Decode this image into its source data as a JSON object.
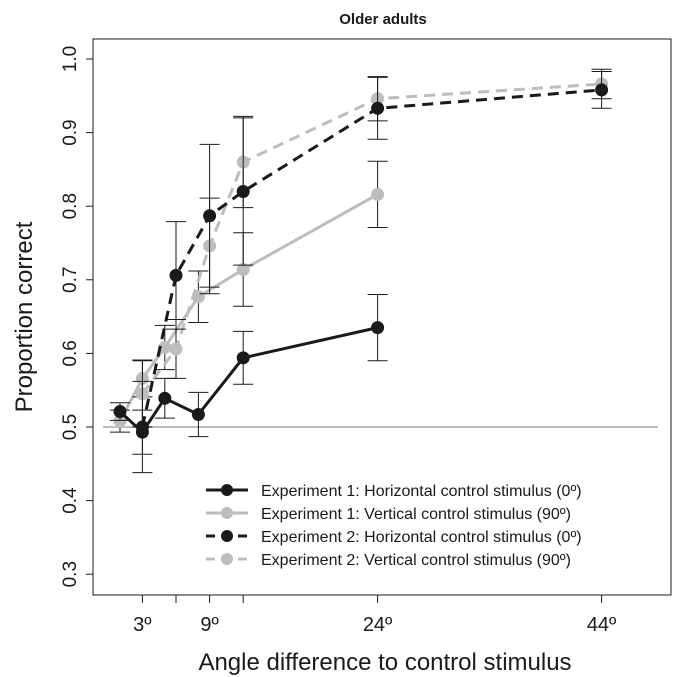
{
  "chart_data": {
    "type": "line",
    "title": "Older adults",
    "xlabel": "Angle difference to control stimulus",
    "ylabel": "Proportion correct",
    "xlim": [
      -2,
      50
    ],
    "ylim": [
      0.28,
      1.03
    ],
    "y_ticks": [
      0.3,
      0.4,
      0.5,
      0.6,
      0.7,
      0.8,
      0.9,
      1.0
    ],
    "y_tick_labels": [
      "0.3",
      "0.4",
      "0.5",
      "0.6",
      "0.7",
      "0.8",
      "0.9",
      "1.0"
    ],
    "x_ticks": [
      3,
      6,
      9,
      12,
      24,
      44
    ],
    "x_tick_labels": [
      "3º",
      "",
      "9º",
      "",
      "24º",
      "44º"
    ],
    "reference_line": 0.5,
    "grid": false,
    "legend_position": "bottom-right",
    "series": [
      {
        "name": "Experiment 1: Horizontal control stimulus (0º)",
        "color": "#1a1a1a",
        "dash": "solid",
        "x": [
          1,
          3,
          5,
          8,
          12,
          24
        ],
        "y": [
          0.521,
          0.493,
          0.539,
          0.517,
          0.594,
          0.635
        ],
        "err": [
          0.012,
          0.03,
          0.027,
          0.03,
          0.036,
          0.045
        ]
      },
      {
        "name": "Experiment 1: Vertical control stimulus (90º)",
        "color": "#bdbdbd",
        "dash": "solid",
        "x": [
          1,
          3,
          5,
          8,
          12,
          24
        ],
        "y": [
          0.508,
          0.566,
          0.608,
          0.677,
          0.714,
          0.816
        ],
        "err": [
          0.015,
          0.025,
          0.03,
          0.035,
          0.05,
          0.045
        ]
      },
      {
        "name": "Experiment 2: Horizontal control stimulus (0º)",
        "color": "#1a1a1a",
        "dash": "dashed",
        "x": [
          3,
          6,
          9,
          12,
          24,
          44
        ],
        "y": [
          0.5,
          0.706,
          0.787,
          0.82,
          0.933,
          0.958
        ],
        "err": [
          0.062,
          0.073,
          0.097,
          0.1,
          0.042,
          0.025
        ]
      },
      {
        "name": "Experiment 2: Vertical control stimulus (90º)",
        "color": "#bdbdbd",
        "dash": "dashed",
        "x": [
          3,
          6,
          9,
          12,
          24,
          44
        ],
        "y": [
          0.545,
          0.606,
          0.746,
          0.86,
          0.946,
          0.966
        ],
        "err": [
          0.045,
          0.04,
          0.065,
          0.062,
          0.03,
          0.02
        ]
      }
    ]
  }
}
